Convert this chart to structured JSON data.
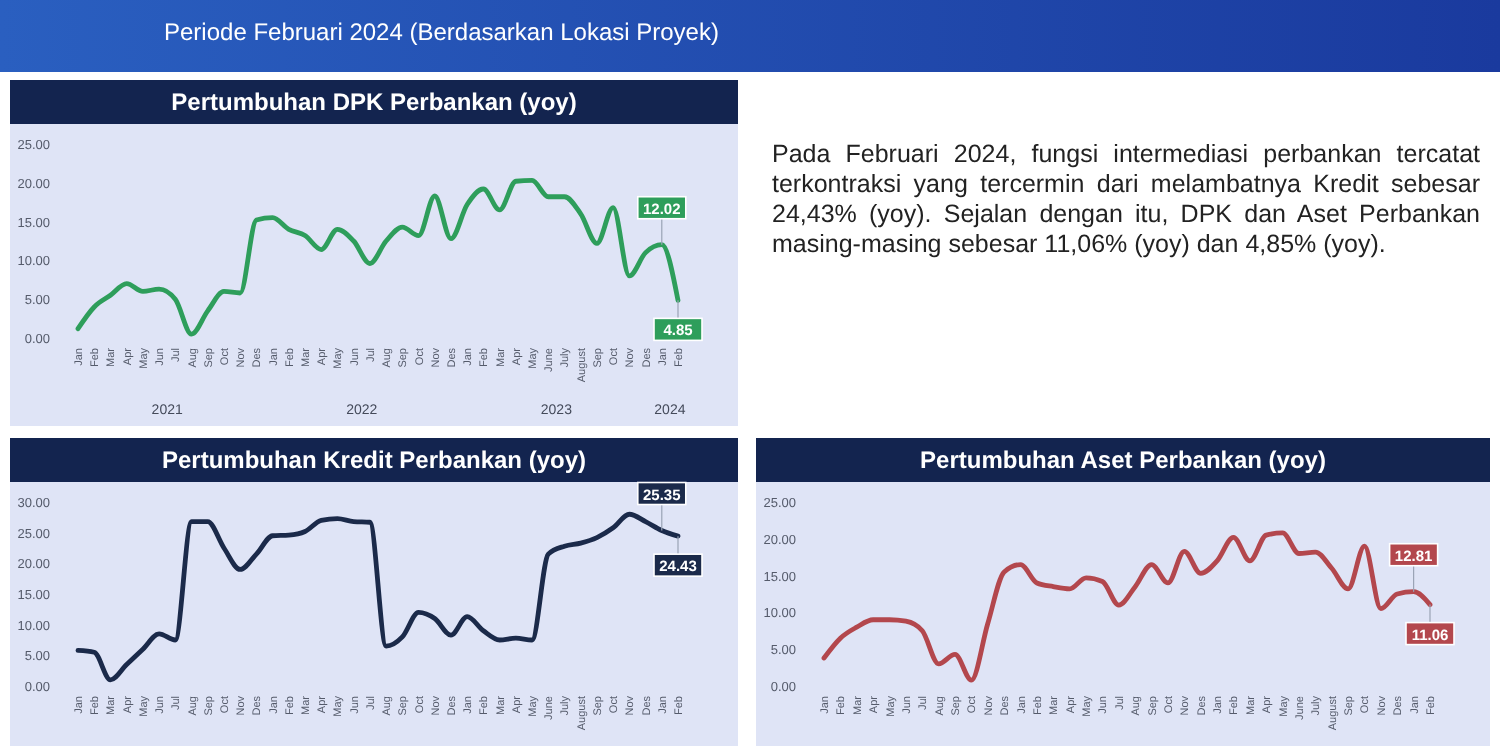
{
  "chart_data": [
    {
      "type": "other",
      "subtitle": "Periode Februari 2024 (Berdasarkan Lokasi Proyek)"
    },
    {
      "type": "line",
      "title": "Pertumbuhan DPK Perbankan (yoy)",
      "categories": [
        "Jan",
        "Feb",
        "Mar",
        "Apr",
        "May",
        "Jun",
        "Jul",
        "Aug",
        "Sep",
        "Oct",
        "Nov",
        "Des",
        "Jan",
        "Feb",
        "Mar",
        "Apr",
        "May",
        "Jun",
        "Jul",
        "Aug",
        "Sep",
        "Oct",
        "Nov",
        "Des",
        "Jan",
        "Feb",
        "Mar",
        "Apr",
        "May",
        "June",
        "July",
        "August",
        "Sep",
        "Oct",
        "Nov",
        "Des",
        "Jan",
        "Feb"
      ],
      "series": [
        {
          "color": "#2e9e5b",
          "values": [
            1.2,
            4,
            5.5,
            7,
            6,
            6.3,
            5,
            0.5,
            3.5,
            6,
            5.8,
            15.2,
            15.5,
            14,
            13.2,
            11.4,
            14,
            12.5,
            9.6,
            12.5,
            14.3,
            13.2,
            18.3,
            12.8,
            17.2,
            19.2,
            16.5,
            20.2,
            20.3,
            18.2,
            18.2,
            16,
            12.2,
            16.8,
            8,
            11,
            12.02,
            4.85
          ],
          "value_labels": [
            null,
            null,
            null,
            null,
            null,
            null,
            null,
            null,
            null,
            null,
            null,
            null,
            null,
            null,
            null,
            null,
            null,
            null,
            null,
            null,
            null,
            null,
            null,
            null,
            null,
            null,
            null,
            null,
            null,
            null,
            null,
            null,
            null,
            null,
            null,
            null,
            "12.02",
            "4.85"
          ]
        }
      ],
      "annotations": [
        "2021",
        "2022",
        "2023",
        "2024"
      ],
      "ylim": [
        0,
        25
      ],
      "yticks": [
        {
          "value": 0,
          "label": "0.00"
        },
        {
          "value": 5,
          "label": "5.00"
        },
        {
          "value": 10,
          "label": "10.00"
        },
        {
          "value": 15,
          "label": "15.00"
        },
        {
          "value": 20,
          "label": "20.00"
        },
        {
          "value": 25,
          "label": "25.00"
        }
      ]
    },
    {
      "type": "other",
      "annotations": [
        "Pada Februari 2024, fungsi intermediasi perbankan tercatat terkontraksi yang tercermin dari melambatnya Kredit sebesar 24,43% (yoy). Sejalan dengan itu, DPK dan Aset Perbankan masing-masing sebesar 11,06% (yoy) dan 4,85% (yoy)."
      ]
    },
    {
      "type": "line",
      "title": "Pertumbuhan Kredit Perbankan (yoy)",
      "categories": [
        "Jan",
        "Feb",
        "Mar",
        "Apr",
        "May",
        "Jun",
        "Jul",
        "Aug",
        "Sep",
        "Oct",
        "Nov",
        "Des",
        "Jan",
        "Feb",
        "Mar",
        "Apr",
        "May",
        "Jun",
        "Jul",
        "Aug",
        "Sep",
        "Oct",
        "Nov",
        "Des",
        "Jan",
        "Feb",
        "Mar",
        "Apr",
        "May",
        "June",
        "July",
        "August",
        "Sep",
        "Oct",
        "Nov",
        "Des",
        "Jan",
        "Feb"
      ],
      "series": [
        {
          "color": "#1b2a4a",
          "values": [
            5.8,
            5.5,
            1,
            3.5,
            6,
            8.5,
            7.5,
            26.8,
            26.8,
            22.5,
            19,
            21.5,
            24.5,
            24.6,
            25.2,
            27,
            27.3,
            26.8,
            26.7,
            6.5,
            8,
            12,
            11,
            8.3,
            11.3,
            9,
            7.5,
            7.8,
            7.5,
            21.5,
            22.8,
            23.3,
            24.2,
            25.8,
            28,
            26.8,
            25.35,
            24.43
          ],
          "value_labels": [
            null,
            null,
            null,
            null,
            null,
            null,
            null,
            null,
            null,
            null,
            null,
            null,
            null,
            null,
            null,
            null,
            null,
            null,
            null,
            null,
            null,
            null,
            null,
            null,
            null,
            null,
            null,
            null,
            null,
            null,
            null,
            null,
            null,
            null,
            null,
            null,
            "25.35",
            "24.43"
          ]
        }
      ],
      "ylim": [
        0,
        30
      ],
      "yticks": [
        {
          "value": 0,
          "label": "0.00"
        },
        {
          "value": 5,
          "label": "5.00"
        },
        {
          "value": 10,
          "label": "10.00"
        },
        {
          "value": 15,
          "label": "15.00"
        },
        {
          "value": 20,
          "label": "20.00"
        },
        {
          "value": 25,
          "label": "25.00"
        },
        {
          "value": 30,
          "label": "30.00"
        }
      ]
    },
    {
      "type": "line",
      "title": "Pertumbuhan Aset Perbankan (yoy)",
      "categories": [
        "Jan",
        "Feb",
        "Mar",
        "Apr",
        "May",
        "Jun",
        "Jul",
        "Aug",
        "Sep",
        "Oct",
        "Nov",
        "Des",
        "Jan",
        "Feb",
        "Mar",
        "Apr",
        "May",
        "Jun",
        "Jul",
        "Aug",
        "Sep",
        "Oct",
        "Nov",
        "Des",
        "Jan",
        "Feb",
        "Mar",
        "Apr",
        "May",
        "June",
        "July",
        "August",
        "Sep",
        "Oct",
        "Nov",
        "Des",
        "Jan",
        "Feb"
      ],
      "series": [
        {
          "color": "#b3474d",
          "values": [
            3.8,
            6.5,
            8,
            9,
            9,
            8.8,
            7.5,
            3,
            4.3,
            0.8,
            8.5,
            15.5,
            16.5,
            14,
            13.5,
            13.2,
            14.7,
            14.2,
            11,
            13.5,
            16.5,
            14,
            18.3,
            15.3,
            17,
            20.2,
            17,
            20.5,
            20.8,
            18,
            18.2,
            16,
            13.2,
            19,
            10.5,
            12.5,
            12.81,
            11.06
          ],
          "value_labels": [
            null,
            null,
            null,
            null,
            null,
            null,
            null,
            null,
            null,
            null,
            null,
            null,
            null,
            null,
            null,
            null,
            null,
            null,
            null,
            null,
            null,
            null,
            null,
            null,
            null,
            null,
            null,
            null,
            null,
            null,
            null,
            null,
            null,
            null,
            null,
            null,
            "12.81",
            "11.06"
          ]
        }
      ],
      "ylim": [
        0,
        25
      ],
      "yticks": [
        {
          "value": 0,
          "label": "0.00"
        },
        {
          "value": 5,
          "label": "5.00"
        },
        {
          "value": 10,
          "label": "10.00"
        },
        {
          "value": 15,
          "label": "15.00"
        },
        {
          "value": 20,
          "label": "20.00"
        },
        {
          "value": 25,
          "label": "25.00"
        }
      ]
    }
  ]
}
